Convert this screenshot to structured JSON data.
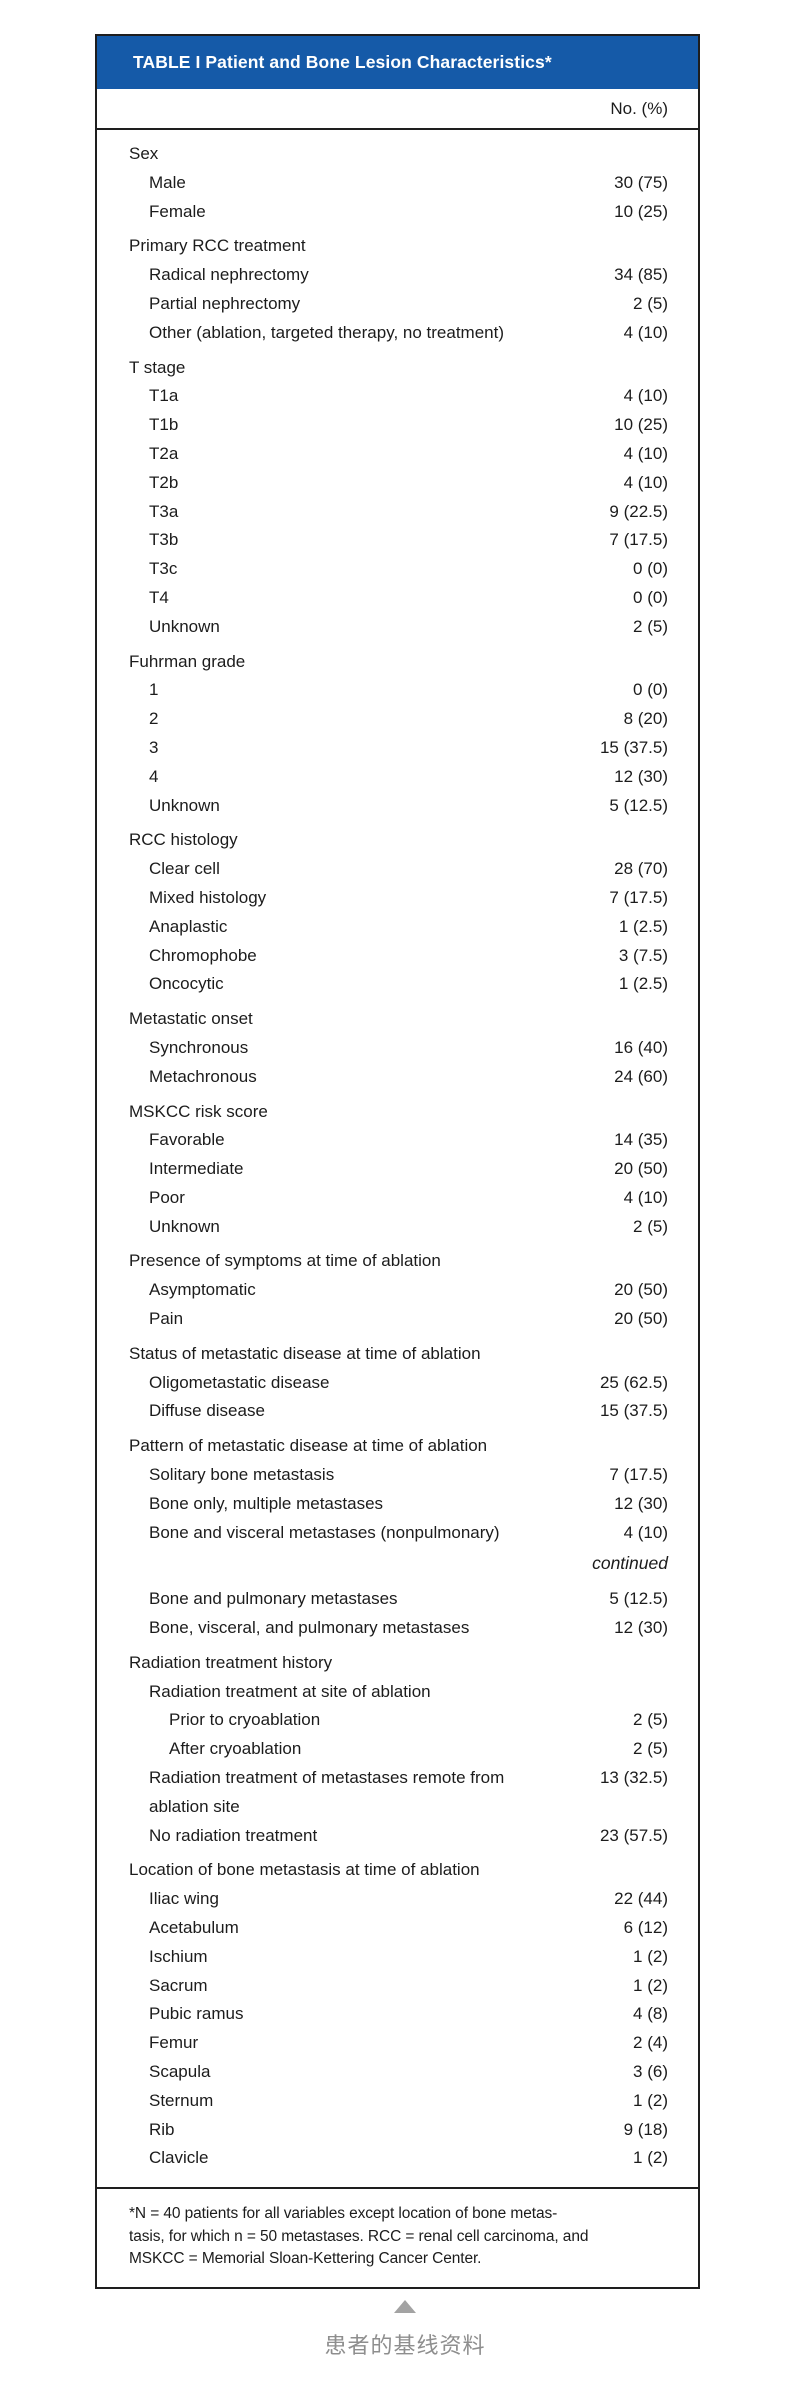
{
  "table": {
    "title": "TABLE I Patient and Bone Lesion Characteristics*",
    "column_header": "No. (%)",
    "continued_label": "continued",
    "sections": [
      {
        "label": "Sex",
        "rows": [
          {
            "label": "Male",
            "value": "30 (75)"
          },
          {
            "label": "Female",
            "value": "10 (25)"
          }
        ]
      },
      {
        "label": "Primary RCC treatment",
        "rows": [
          {
            "label": "Radical nephrectomy",
            "value": "34 (85)"
          },
          {
            "label": "Partial nephrectomy",
            "value": "2 (5)"
          },
          {
            "label": "Other (ablation, targeted therapy, no treatment)",
            "value": "4 (10)"
          }
        ]
      },
      {
        "label": "T stage",
        "rows": [
          {
            "label": "T1a",
            "value": "4 (10)"
          },
          {
            "label": "T1b",
            "value": "10 (25)"
          },
          {
            "label": "T2a",
            "value": "4 (10)"
          },
          {
            "label": "T2b",
            "value": "4 (10)"
          },
          {
            "label": "T3a",
            "value": "9 (22.5)"
          },
          {
            "label": "T3b",
            "value": "7 (17.5)"
          },
          {
            "label": "T3c",
            "value": "0 (0)"
          },
          {
            "label": "T4",
            "value": "0 (0)"
          },
          {
            "label": "Unknown",
            "value": "2 (5)"
          }
        ]
      },
      {
        "label": "Fuhrman grade",
        "rows": [
          {
            "label": "1",
            "value": "0 (0)"
          },
          {
            "label": "2",
            "value": "8 (20)"
          },
          {
            "label": "3",
            "value": "15 (37.5)"
          },
          {
            "label": "4",
            "value": "12 (30)"
          },
          {
            "label": "Unknown",
            "value": "5 (12.5)"
          }
        ]
      },
      {
        "label": "RCC histology",
        "rows": [
          {
            "label": "Clear cell",
            "value": "28 (70)"
          },
          {
            "label": "Mixed histology",
            "value": "7 (17.5)"
          },
          {
            "label": "Anaplastic",
            "value": "1 (2.5)"
          },
          {
            "label": "Chromophobe",
            "value": "3 (7.5)"
          },
          {
            "label": "Oncocytic",
            "value": "1 (2.5)"
          }
        ]
      },
      {
        "label": "Metastatic onset",
        "rows": [
          {
            "label": "Synchronous",
            "value": "16 (40)"
          },
          {
            "label": "Metachronous",
            "value": "24 (60)"
          }
        ]
      },
      {
        "label": "MSKCC risk score",
        "rows": [
          {
            "label": "Favorable",
            "value": "14 (35)"
          },
          {
            "label": "Intermediate",
            "value": "20 (50)"
          },
          {
            "label": "Poor",
            "value": "4 (10)"
          },
          {
            "label": "Unknown",
            "value": "2 (5)"
          }
        ]
      },
      {
        "label": "Presence of symptoms at time of ablation",
        "rows": [
          {
            "label": "Asymptomatic",
            "value": "20 (50)"
          },
          {
            "label": "Pain",
            "value": "20 (50)"
          }
        ]
      },
      {
        "label": "Status of metastatic disease at time of ablation",
        "rows": [
          {
            "label": "Oligometastatic disease",
            "value": "25 (62.5)"
          },
          {
            "label": "Diffuse disease",
            "value": "15 (37.5)"
          }
        ]
      },
      {
        "label": "Pattern of metastatic disease at time of ablation",
        "rows": [
          {
            "label": "Solitary bone metastasis",
            "value": "7 (17.5)"
          },
          {
            "label": "Bone only, multiple metastases",
            "value": "12 (30)"
          },
          {
            "label": "Bone and visceral metastases (nonpulmonary)",
            "value": "4 (10)"
          },
          {
            "type": "continued"
          },
          {
            "label": "Bone and pulmonary metastases",
            "value": "5 (12.5)"
          },
          {
            "label": "Bone, visceral, and pulmonary metastases",
            "value": "12 (30)"
          }
        ]
      },
      {
        "label": "Radiation treatment history",
        "rows": [
          {
            "label": "Radiation treatment at site of ablation",
            "value": ""
          },
          {
            "label": "Prior to cryoablation",
            "value": "2 (5)",
            "indent": 2
          },
          {
            "label": "After cryoablation",
            "value": "2 (5)",
            "indent": 2
          },
          {
            "label": "Radiation treatment of metastases remote from ablation site",
            "value": "13 (32.5)"
          },
          {
            "label": "No radiation treatment",
            "value": "23 (57.5)"
          }
        ]
      },
      {
        "label": "Location of bone metastasis at time of ablation",
        "rows": [
          {
            "label": "Iliac wing",
            "value": "22 (44)"
          },
          {
            "label": "Acetabulum",
            "value": "6 (12)"
          },
          {
            "label": "Ischium",
            "value": "1 (2)"
          },
          {
            "label": "Sacrum",
            "value": "1 (2)"
          },
          {
            "label": "Pubic ramus",
            "value": "4 (8)"
          },
          {
            "label": "Femur",
            "value": "2 (4)"
          },
          {
            "label": "Scapula",
            "value": "3 (6)"
          },
          {
            "label": "Sternum",
            "value": "1 (2)"
          },
          {
            "label": "Rib",
            "value": "9 (18)"
          },
          {
            "label": "Clavicle",
            "value": "1 (2)"
          }
        ]
      }
    ],
    "footnote_lines": [
      "*N = 40 patients for all variables except location of bone metas-",
      "tasis, for which n = 50 metastases. RCC = renal cell carcinoma, and",
      "MSKCC = Memorial Sloan-Kettering Cancer Center."
    ]
  },
  "caption": {
    "text": "患者的基线资料"
  },
  "colors": {
    "header_blue": "#155AA8",
    "border_dark": "#1e1e1e",
    "caption_gray": "#8e8e8e",
    "triangle_gray": "#a3a3a3"
  }
}
